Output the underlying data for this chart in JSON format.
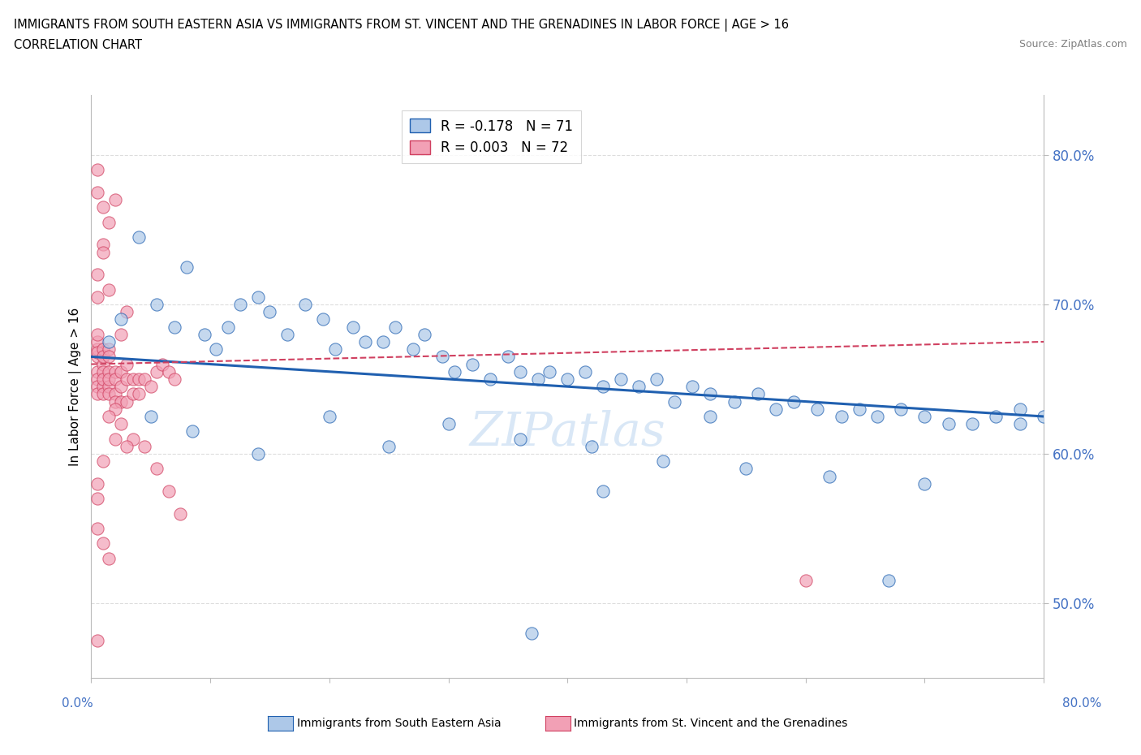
{
  "title": "IMMIGRANTS FROM SOUTH EASTERN ASIA VS IMMIGRANTS FROM ST. VINCENT AND THE GRENADINES IN LABOR FORCE | AGE > 16",
  "subtitle": "CORRELATION CHART",
  "source": "Source: ZipAtlas.com",
  "ylabel": "In Labor Force | Age > 16",
  "legend1_label": "Immigrants from South Eastern Asia",
  "legend2_label": "Immigrants from St. Vincent and the Grenadines",
  "legend1_r": "R = -0.178",
  "legend1_n": "N = 71",
  "legend2_r": "R = 0.003",
  "legend2_n": "N = 72",
  "blue_color": "#adc8e8",
  "pink_color": "#f2a0b5",
  "blue_line_color": "#2060b0",
  "pink_line_color": "#d04060",
  "xmin": 0.0,
  "xmax": 80.0,
  "ymin": 45.0,
  "ymax": 84.0,
  "yticks": [
    50.0,
    60.0,
    70.0,
    80.0
  ],
  "ytick_labels": [
    "50.0%",
    "60.0%",
    "70.0%",
    "80.0%"
  ],
  "background_color": "#ffffff",
  "blue_line_start_y": 66.5,
  "blue_line_end_y": 62.5,
  "pink_line_start_y": 66.0,
  "pink_line_end_y": 67.5,
  "blue_x": [
    1.5,
    2.5,
    4.0,
    5.5,
    7.0,
    8.0,
    9.5,
    10.5,
    11.5,
    12.5,
    14.0,
    15.0,
    16.5,
    18.0,
    19.5,
    20.5,
    22.0,
    23.0,
    24.5,
    25.5,
    27.0,
    28.0,
    29.5,
    30.5,
    32.0,
    33.5,
    35.0,
    36.0,
    37.5,
    38.5,
    40.0,
    41.5,
    43.0,
    44.5,
    46.0,
    47.5,
    49.0,
    50.5,
    52.0,
    54.0,
    56.0,
    57.5,
    59.0,
    61.0,
    63.0,
    64.5,
    66.0,
    68.0,
    70.0,
    72.0,
    74.0,
    76.0,
    78.0,
    80.0,
    5.0,
    8.5,
    14.0,
    20.0,
    25.0,
    30.0,
    36.0,
    42.0,
    48.0,
    55.0,
    62.0,
    70.0,
    78.0,
    37.0,
    43.0,
    52.0,
    67.0
  ],
  "blue_y": [
    67.5,
    69.0,
    74.5,
    70.0,
    68.5,
    72.5,
    68.0,
    67.0,
    68.5,
    70.0,
    70.5,
    69.5,
    68.0,
    70.0,
    69.0,
    67.0,
    68.5,
    67.5,
    67.5,
    68.5,
    67.0,
    68.0,
    66.5,
    65.5,
    66.0,
    65.0,
    66.5,
    65.5,
    65.0,
    65.5,
    65.0,
    65.5,
    64.5,
    65.0,
    64.5,
    65.0,
    63.5,
    64.5,
    64.0,
    63.5,
    64.0,
    63.0,
    63.5,
    63.0,
    62.5,
    63.0,
    62.5,
    63.0,
    62.5,
    62.0,
    62.0,
    62.5,
    62.0,
    62.5,
    62.5,
    61.5,
    60.0,
    62.5,
    60.5,
    62.0,
    61.0,
    60.5,
    59.5,
    59.0,
    58.5,
    58.0,
    63.0,
    48.0,
    57.5,
    62.5,
    51.5
  ],
  "pink_x": [
    0.5,
    0.5,
    0.5,
    0.5,
    0.5,
    0.5,
    0.5,
    0.5,
    0.5,
    1.0,
    1.0,
    1.0,
    1.0,
    1.0,
    1.0,
    1.0,
    1.5,
    1.5,
    1.5,
    1.5,
    1.5,
    1.5,
    2.0,
    2.0,
    2.0,
    2.0,
    2.5,
    2.5,
    2.5,
    3.0,
    3.0,
    3.0,
    3.5,
    3.5,
    4.0,
    4.0,
    4.5,
    5.0,
    5.5,
    6.0,
    6.5,
    7.0,
    0.5,
    0.5,
    1.0,
    1.5,
    2.0,
    2.5,
    3.0,
    0.5,
    1.0,
    1.5,
    2.0,
    2.5,
    3.5,
    4.5,
    5.5,
    6.5,
    7.5,
    0.5,
    0.5,
    1.0,
    1.5,
    0.5,
    1.0,
    0.5,
    0.5,
    1.0,
    1.5,
    2.0,
    3.0,
    60.0
  ],
  "pink_y": [
    66.5,
    67.0,
    67.5,
    68.0,
    65.5,
    65.0,
    64.5,
    64.0,
    66.8,
    67.0,
    66.0,
    65.5,
    64.5,
    64.0,
    65.0,
    66.5,
    67.0,
    66.5,
    65.5,
    64.5,
    64.0,
    65.0,
    65.5,
    64.0,
    63.5,
    65.0,
    64.5,
    63.5,
    65.5,
    65.0,
    63.5,
    66.0,
    65.0,
    64.0,
    65.0,
    64.0,
    65.0,
    64.5,
    65.5,
    66.0,
    65.5,
    65.0,
    72.0,
    70.5,
    74.0,
    75.5,
    77.0,
    68.0,
    69.5,
    79.0,
    76.5,
    71.0,
    63.0,
    62.0,
    61.0,
    60.5,
    59.0,
    57.5,
    56.0,
    57.0,
    55.0,
    54.0,
    53.0,
    58.0,
    59.5,
    47.5,
    77.5,
    73.5,
    62.5,
    61.0,
    60.5,
    51.5
  ]
}
